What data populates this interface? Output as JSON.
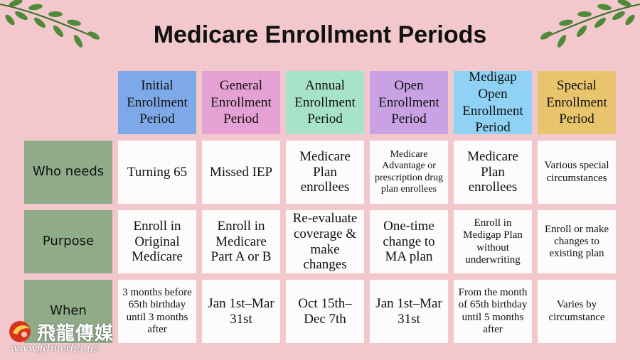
{
  "title": "Medicare Enrollment Periods",
  "columns": [
    {
      "label": "Initial Enrollment Period",
      "color": "#7ea9e8"
    },
    {
      "label": "General Enrollment Period",
      "color": "#e6a1d4"
    },
    {
      "label": "Annual Enrollment Period",
      "color": "#a7e3c9"
    },
    {
      "label": "Open Enrollment Period",
      "color": "#c9a2e6"
    },
    {
      "label": "Medigap Open Enrollment Period",
      "color": "#8fd2f5"
    },
    {
      "label": "Special Enrollment Period",
      "color": "#e8c46d"
    }
  ],
  "rows": [
    {
      "label": "Who needs",
      "cells": [
        "Turning 65",
        "Missed IEP",
        "Medicare Plan enrollees",
        "Medicare Advantage or prescription drug plan enrollees",
        "Medicare Plan enrollees",
        "Various special circumstances"
      ]
    },
    {
      "label": "Purpose",
      "cells": [
        "Enroll in Original Medicare",
        "Enroll in Medicare Part A or B",
        "Re-evaluate coverage & make changes",
        "One-time change to MA plan",
        "Enroll in Medigap Plan without underwriting",
        "Enroll or make changes to existing plan"
      ]
    },
    {
      "label": "When",
      "cells": [
        "3 months before 65th birthday until 3 months after",
        "Jan 1st–Mar 31st",
        "Oct 15th–Dec 7th",
        "Jan 1st–Mar 31st",
        "From the month of 65th birthday until 5 months after",
        "Varies by circumstance"
      ]
    }
  ],
  "watermark": {
    "name": "飛龍傳媒",
    "url": "www.fdmedia.us"
  }
}
